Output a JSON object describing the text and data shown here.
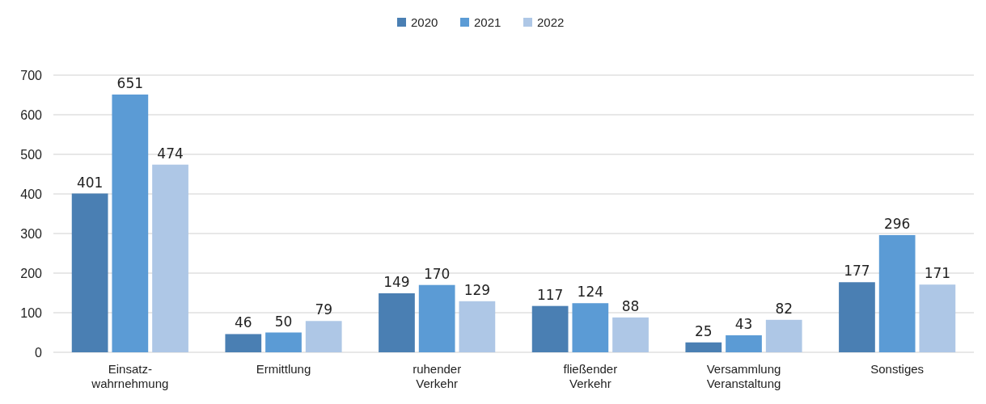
{
  "chart_data": {
    "type": "bar",
    "categories": [
      "Einsatz-\nwahrnehmung",
      "Ermittlung",
      "ruhender\nVerkehr",
      "fließender\nVerkehr",
      "Versammlung\nVeranstaltung",
      "Sonstiges"
    ],
    "series": [
      {
        "name": "2020",
        "color": "#4a7fb3",
        "values": [
          401,
          46,
          149,
          117,
          25,
          177
        ]
      },
      {
        "name": "2021",
        "color": "#5b9bd5",
        "values": [
          651,
          50,
          170,
          124,
          43,
          296
        ]
      },
      {
        "name": "2022",
        "color": "#aec7e6",
        "values": [
          474,
          79,
          129,
          88,
          82,
          171
        ]
      }
    ],
    "ylim": [
      0,
      700
    ],
    "yticks": [
      0,
      100,
      200,
      300,
      400,
      500,
      600,
      700
    ],
    "grid": "y",
    "legend": "top",
    "data_labels": true
  }
}
